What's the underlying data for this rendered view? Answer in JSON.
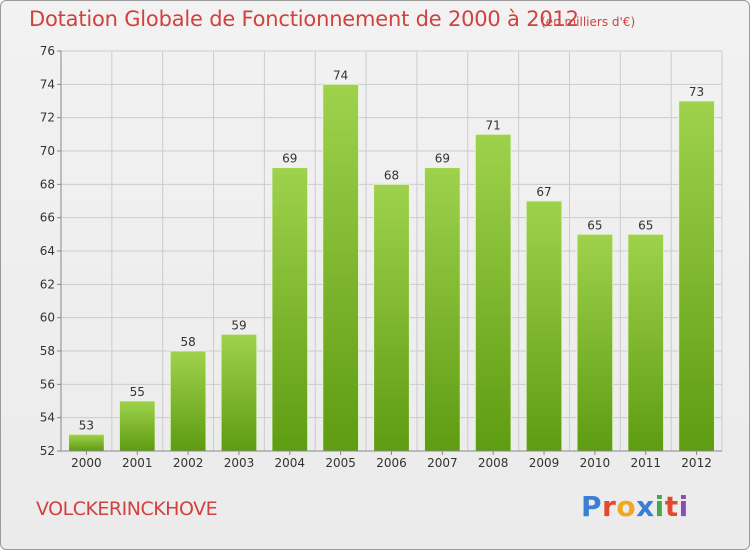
{
  "header": {
    "title": "Dotation Globale de Fonctionnement de 2000 à 2012",
    "subtitle": "(en milliers d'€)"
  },
  "footer": {
    "town": "VOLCKERINCKHOVE",
    "logo_text": "Proxiti",
    "logo_colors": [
      "#3a7fd5",
      "#e2482e",
      "#f0a81e",
      "#3a7fd5",
      "#43a94b",
      "#e2482e",
      "#8a4db5"
    ]
  },
  "colors": {
    "title": "#d0423f",
    "bar_top": "#9fd24c",
    "bar_bottom": "#5e9c12",
    "grid": "#cccccc"
  },
  "chart_data": {
    "type": "bar",
    "categories": [
      "2000",
      "2001",
      "2002",
      "2003",
      "2004",
      "2005",
      "2006",
      "2007",
      "2008",
      "2009",
      "2010",
      "2011",
      "2012"
    ],
    "values": [
      53,
      55,
      58,
      59,
      69,
      74,
      68,
      69,
      71,
      67,
      65,
      65,
      73
    ],
    "ylim": [
      52,
      76
    ],
    "yticks": [
      52,
      54,
      56,
      58,
      60,
      62,
      64,
      66,
      68,
      70,
      72,
      74,
      76
    ],
    "grid": true,
    "xlabel": "",
    "ylabel": ""
  }
}
